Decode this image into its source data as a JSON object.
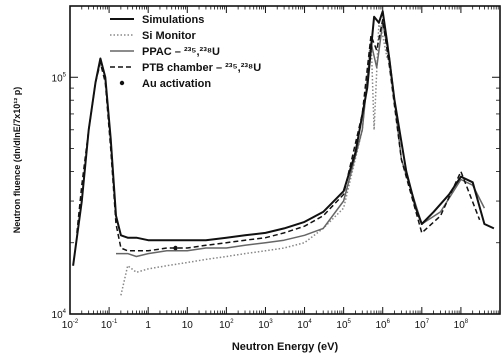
{
  "chart_data": {
    "type": "line",
    "xlabel": "Neutron Energy (eV)",
    "ylabel": "Neutron fluence (dn/dlnE/7x10¹² p)",
    "xscale": "log",
    "yscale": "log",
    "xlim": [
      0.01,
      1000000000
    ],
    "ylim": [
      10000,
      200000
    ],
    "x_ticks": [
      {
        "value": 0.01,
        "base": "10",
        "exp": "-2"
      },
      {
        "value": 0.1,
        "base": "10",
        "exp": "-1"
      },
      {
        "value": 1,
        "base": "1",
        "exp": ""
      },
      {
        "value": 10,
        "base": "10",
        "exp": ""
      },
      {
        "value": 100,
        "base": "10",
        "exp": "2"
      },
      {
        "value": 1000,
        "base": "10",
        "exp": "3"
      },
      {
        "value": 10000,
        "base": "10",
        "exp": "4"
      },
      {
        "value": 100000,
        "base": "10",
        "exp": "5"
      },
      {
        "value": 1000000,
        "base": "10",
        "exp": "6"
      },
      {
        "value": 10000000,
        "base": "10",
        "exp": "7"
      },
      {
        "value": 100000000,
        "base": "10",
        "exp": "8"
      }
    ],
    "y_ticks": [
      {
        "value": 10000,
        "base": "10",
        "exp": "4"
      },
      {
        "value": 100000,
        "base": "10",
        "exp": "5"
      }
    ],
    "legend_position": "top-left",
    "series": [
      {
        "name": "Simulations",
        "color": "#111111",
        "style": "solid",
        "x": [
          0.012,
          0.02,
          0.03,
          0.045,
          0.06,
          0.08,
          0.11,
          0.15,
          0.2,
          0.3,
          0.5,
          1,
          3,
          10,
          30,
          100,
          300,
          1000,
          3000,
          10000,
          30000,
          100000,
          200000,
          400000,
          600000,
          800000,
          1000000,
          1300000,
          2000000,
          4000000,
          7000000,
          10000000,
          20000000,
          50000000,
          100000000,
          200000000,
          400000000,
          700000000
        ],
        "y": [
          16000,
          30000,
          60000,
          95000,
          120000,
          100000,
          55000,
          26000,
          21500,
          21000,
          21000,
          20500,
          20500,
          20500,
          20500,
          21000,
          21500,
          22000,
          23000,
          24500,
          27000,
          33000,
          48000,
          90000,
          180000,
          170000,
          190000,
          140000,
          80000,
          40000,
          28000,
          24000,
          27000,
          32000,
          38000,
          36000,
          24000,
          23000
        ]
      },
      {
        "name": "Si Monitor",
        "color": "#888888",
        "style": "dotted",
        "x": [
          0.2,
          0.3,
          0.5,
          1,
          3,
          10,
          30,
          100,
          300,
          1000,
          3000,
          10000,
          30000,
          100000,
          300000,
          500000,
          600000,
          800000,
          1000000,
          1300000
        ],
        "y": [
          12000,
          16000,
          15000,
          15500,
          16000,
          16500,
          17000,
          17500,
          18000,
          18500,
          19000,
          20000,
          23000,
          28000,
          60000,
          150000,
          60000,
          170000,
          150000,
          120000
        ]
      },
      {
        "name": "PPAC – ²³⁵,²³⁸U",
        "color": "#666666",
        "style": "solid",
        "x": [
          0.15,
          0.3,
          0.5,
          1,
          3,
          10,
          30,
          100,
          300,
          1000,
          3000,
          10000,
          30000,
          100000,
          300000,
          500000,
          700000,
          1000000,
          1500000,
          3000000,
          10000000,
          30000000,
          100000000,
          200000000,
          400000000
        ],
        "y": [
          18000,
          18000,
          17500,
          18000,
          18500,
          18500,
          19000,
          19000,
          19500,
          20000,
          20500,
          21500,
          23000,
          30000,
          60000,
          140000,
          110000,
          170000,
          120000,
          45000,
          24000,
          27000,
          37000,
          35000,
          28000
        ]
      },
      {
        "name": "PTB chamber – ²³⁵,²³⁸U",
        "color": "#111111",
        "style": "dashed",
        "x": [
          0.015,
          0.02,
          0.03,
          0.045,
          0.06,
          0.08,
          0.11,
          0.15,
          0.2,
          0.3,
          0.5,
          1,
          3,
          10,
          30,
          100,
          300,
          1000,
          3000,
          10000,
          30000,
          100000,
          300000,
          500000,
          700000,
          1000000,
          1500000,
          3000000,
          10000000,
          30000000,
          100000000,
          300000000
        ],
        "y": [
          22000,
          35000,
          60000,
          95000,
          115000,
          95000,
          50000,
          24000,
          19000,
          18500,
          18500,
          18500,
          19000,
          19000,
          19500,
          20000,
          20500,
          21000,
          22000,
          23500,
          26000,
          32000,
          70000,
          150000,
          130000,
          175000,
          110000,
          45000,
          22000,
          26000,
          40000,
          25000
        ]
      },
      {
        "name": "Au activation",
        "color": "#111111",
        "style": "marker",
        "x": [
          5
        ],
        "y": [
          19000
        ]
      }
    ]
  }
}
